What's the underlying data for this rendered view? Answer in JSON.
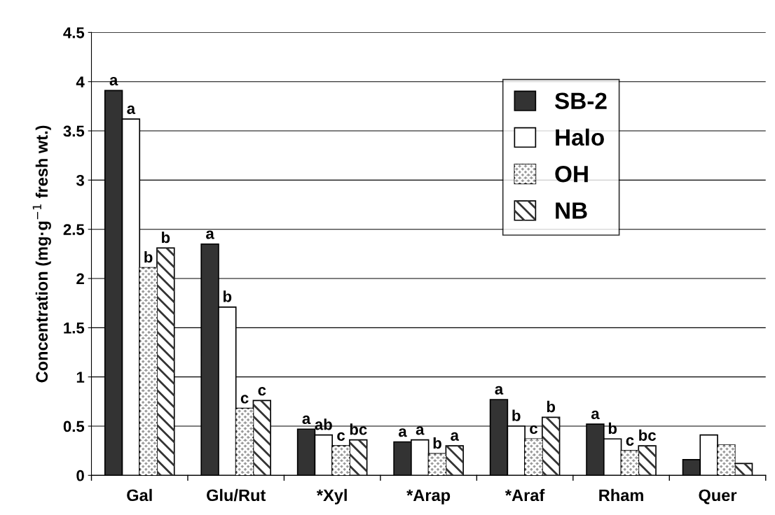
{
  "chart_data": {
    "type": "bar",
    "ylabel": "Concentration (mg·g$^{−1}$ fresh wt.)",
    "categories": [
      "Gal",
      "Glu/Rut",
      "*Xyl",
      "*Arap",
      "*Araf",
      "Rham",
      "Quer"
    ],
    "series": [
      {
        "name": "SB-2",
        "color": "#333333",
        "values": [
          3.91,
          2.35,
          0.47,
          0.34,
          0.77,
          0.52,
          0.16
        ],
        "value_labels": [
          "a",
          "a",
          "a",
          "a",
          "a",
          "a",
          null
        ]
      },
      {
        "name": "Halo",
        "color": "#ffffff",
        "values": [
          3.62,
          1.71,
          0.41,
          0.36,
          0.5,
          0.37,
          0.41
        ],
        "value_labels": [
          "a",
          "b",
          "ab",
          "a",
          "b",
          "b",
          null
        ]
      },
      {
        "name": "OH",
        "color": "#999999",
        "values": [
          2.11,
          0.68,
          0.3,
          0.22,
          0.37,
          0.25,
          0.31
        ],
        "value_labels": [
          "b",
          "c",
          "c",
          "b",
          "c",
          "c",
          null
        ]
      },
      {
        "name": "NB",
        "color": "#ffffff",
        "values": [
          2.31,
          0.76,
          0.36,
          0.3,
          0.59,
          0.3,
          0.12
        ],
        "value_labels": [
          "b",
          "c",
          "bc",
          "a",
          "b",
          "bc",
          null
        ]
      }
    ],
    "ylim": [
      0,
      4.5
    ],
    "yticks": [
      0,
      0.5,
      1,
      1.5,
      2,
      2.5,
      3,
      3.5,
      4,
      4.5
    ],
    "grid": "y",
    "legend": "top right"
  }
}
